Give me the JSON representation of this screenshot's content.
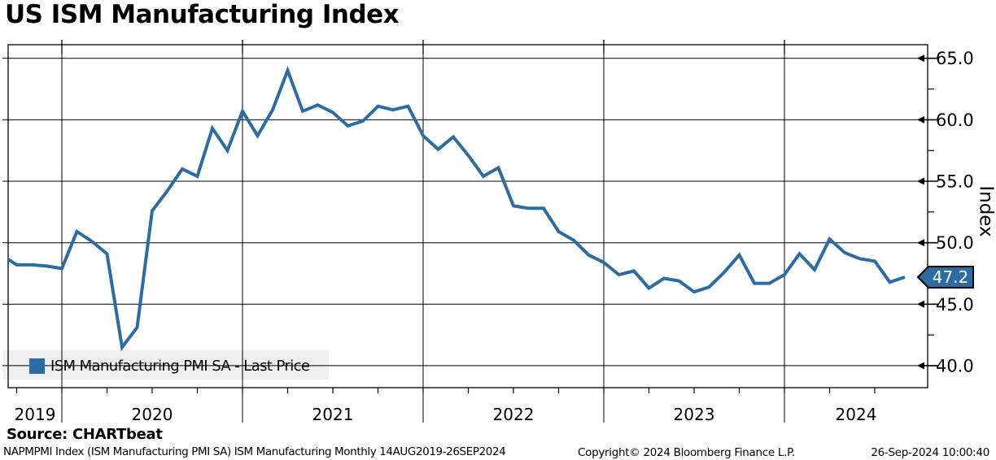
{
  "title": "US ISM Manufacturing Index",
  "legend": {
    "label": "ISM Manufacturing PMI SA - Last Price",
    "marker_color": "#2d6ca2"
  },
  "y_axis": {
    "label": "Index",
    "tick_labels": [
      "65.0",
      "60.0",
      "55.0",
      "50.0",
      "45.0",
      "40.0"
    ]
  },
  "last_price_badge": {
    "value": "47.2",
    "fill": "#2d6ca2",
    "border_color": "#000000",
    "text_color": "#ffffff"
  },
  "footer": {
    "source": "Source: CHARTbeat",
    "description": "NAPMPMI Index (ISM Manufacturing PMI SA) ISM Manufacturing  Monthly 14AUG2019-26SEP2024",
    "copyright": "Copyright© 2024 Bloomberg Finance L.P.",
    "timestamp": "26-Sep-2024 10:00:40"
  },
  "chart_data": {
    "type": "line",
    "title": "US ISM Manufacturing Index",
    "xlabel": "",
    "ylabel": "Index",
    "ylim": [
      38.5,
      66.2
    ],
    "yticks": [
      65,
      60,
      55,
      50,
      45,
      40
    ],
    "minor_yticks": [
      62.5,
      57.5,
      52.5,
      47.5,
      42.5
    ],
    "x_years": [
      "2019",
      "2020",
      "2021",
      "2022",
      "2023",
      "2024"
    ],
    "grid": true,
    "legend_position": "bottom-left",
    "x": [
      "2019-08",
      "2019-09",
      "2019-10",
      "2019-11",
      "2019-12",
      "2020-01",
      "2020-02",
      "2020-03",
      "2020-04",
      "2020-05",
      "2020-06",
      "2020-07",
      "2020-08",
      "2020-09",
      "2020-10",
      "2020-11",
      "2020-12",
      "2021-01",
      "2021-02",
      "2021-03",
      "2021-04",
      "2021-05",
      "2021-06",
      "2021-07",
      "2021-08",
      "2021-09",
      "2021-10",
      "2021-11",
      "2021-12",
      "2022-01",
      "2022-02",
      "2022-03",
      "2022-04",
      "2022-05",
      "2022-06",
      "2022-07",
      "2022-08",
      "2022-09",
      "2022-10",
      "2022-11",
      "2022-12",
      "2023-01",
      "2023-02",
      "2023-03",
      "2023-04",
      "2023-05",
      "2023-06",
      "2023-07",
      "2023-08",
      "2023-09",
      "2023-10",
      "2023-11",
      "2023-12",
      "2024-01",
      "2024-02",
      "2024-03",
      "2024-04",
      "2024-05",
      "2024-06",
      "2024-07",
      "2024-08"
    ],
    "series": [
      {
        "name": "ISM Manufacturing PMI SA - Last Price",
        "color": "#2d6ca2",
        "values": [
          49.0,
          48.2,
          48.2,
          48.1,
          47.9,
          50.9,
          50.1,
          49.1,
          41.5,
          43.1,
          52.6,
          54.2,
          56.0,
          55.4,
          59.3,
          57.5,
          60.7,
          58.7,
          60.8,
          64.0,
          60.7,
          61.2,
          60.6,
          59.5,
          59.9,
          61.1,
          60.8,
          61.1,
          58.7,
          57.6,
          58.6,
          57.1,
          55.4,
          56.1,
          53.0,
          52.8,
          52.8,
          50.9,
          50.2,
          49.0,
          48.4,
          47.4,
          47.7,
          46.3,
          47.1,
          46.9,
          46.0,
          46.4,
          47.6,
          49.0,
          46.7,
          46.7,
          47.4,
          49.1,
          47.8,
          50.3,
          49.2,
          48.7,
          48.5,
          46.8,
          47.2
        ]
      }
    ],
    "last_price": 47.2
  }
}
